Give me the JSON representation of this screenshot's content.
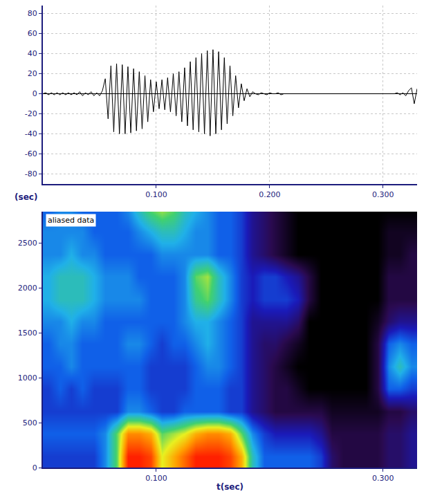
{
  "chart_data": [
    {
      "type": "line",
      "xlabel": "(sec)",
      "x": [
        0,
        0.0025,
        0.005,
        0.0075,
        0.01,
        0.0125,
        0.015,
        0.0175,
        0.02,
        0.0225,
        0.025,
        0.0275,
        0.03,
        0.0325,
        0.035,
        0.0375,
        0.04,
        0.0425,
        0.045,
        0.0475,
        0.05,
        0.0525,
        0.055,
        0.0575,
        0.06,
        0.0625,
        0.065,
        0.0675,
        0.07,
        0.0725,
        0.075,
        0.0775,
        0.08,
        0.0825,
        0.085,
        0.0875,
        0.09,
        0.0925,
        0.095,
        0.0975,
        0.1,
        0.1025,
        0.105,
        0.1075,
        0.11,
        0.1125,
        0.115,
        0.1175,
        0.12,
        0.1225,
        0.125,
        0.1275,
        0.13,
        0.1325,
        0.135,
        0.1375,
        0.14,
        0.1425,
        0.145,
        0.1475,
        0.15,
        0.1525,
        0.155,
        0.1575,
        0.16,
        0.1625,
        0.165,
        0.1675,
        0.17,
        0.1725,
        0.175,
        0.1775,
        0.18,
        0.1825,
        0.185,
        0.1875,
        0.19,
        0.1925,
        0.195,
        0.1975,
        0.2,
        0.2025,
        0.205,
        0.2075,
        0.21,
        0.2125,
        0.215,
        0.2175,
        0.22,
        0.2225,
        0.225,
        0.2275,
        0.23,
        0.2325,
        0.235,
        0.2375,
        0.24,
        0.2425,
        0.245,
        0.2475,
        0.25,
        0.2525,
        0.255,
        0.2575,
        0.26,
        0.2625,
        0.265,
        0.2675,
        0.27,
        0.2725,
        0.275,
        0.2775,
        0.28,
        0.2825,
        0.285,
        0.2875,
        0.29,
        0.2925,
        0.295,
        0.2975,
        0.3,
        0.3025,
        0.305,
        0.3075,
        0.31,
        0.3125,
        0.315,
        0.3175,
        0.32,
        0.3225,
        0.325,
        0.3275,
        0.33
      ],
      "values": [
        0,
        1,
        -1,
        1,
        -1,
        1,
        -1,
        1,
        -1,
        1,
        -1,
        1,
        -1,
        2,
        -2,
        1,
        -1,
        2,
        -2,
        1,
        -2,
        3,
        15,
        -25,
        28,
        -38,
        30,
        -40,
        29,
        -40,
        27,
        -39,
        25,
        -37,
        22,
        -35,
        18,
        -28,
        14,
        -18,
        12,
        -15,
        14,
        -16,
        16,
        -18,
        20,
        -22,
        22,
        -28,
        26,
        -32,
        32,
        -36,
        36,
        -38,
        40,
        -40,
        43,
        -42,
        44,
        -40,
        42,
        -36,
        36,
        -30,
        28,
        -22,
        18,
        -14,
        10,
        -7,
        5,
        -3,
        2,
        0,
        -1,
        1,
        0,
        -1,
        1,
        0,
        0,
        1,
        -1,
        0,
        0,
        0,
        0,
        0,
        0,
        0,
        0,
        0,
        0,
        0,
        0,
        0,
        0,
        0,
        0,
        0,
        0,
        0,
        0,
        0,
        0,
        0,
        0,
        0,
        0,
        0,
        0,
        0,
        0,
        0,
        0,
        0,
        0,
        0,
        0,
        0,
        0,
        0,
        0,
        1,
        -1,
        1,
        -2,
        3,
        6,
        -10,
        5
      ],
      "color": "#000000",
      "xlim": [
        0,
        0.33
      ],
      "xticks": [
        {
          "value": 0.1,
          "label": "0.100"
        },
        {
          "value": 0.2,
          "label": "0.200"
        },
        {
          "value": 0.3,
          "label": "0.300"
        }
      ],
      "ylim": [
        -90,
        88
      ],
      "yticks": [
        -80,
        -60,
        -40,
        -20,
        0,
        20,
        40,
        60,
        80
      ],
      "grid": true
    },
    {
      "type": "heatmap",
      "xlabel": "t(sec)",
      "annotations": [
        "aliased data"
      ],
      "x": [
        0.005,
        0.015,
        0.025,
        0.035,
        0.045,
        0.055,
        0.065,
        0.075,
        0.085,
        0.095,
        0.105,
        0.115,
        0.125,
        0.135,
        0.145,
        0.155,
        0.165,
        0.175,
        0.185,
        0.195,
        0.205,
        0.215,
        0.225,
        0.235,
        0.245,
        0.255,
        0.265,
        0.275,
        0.285,
        0.295,
        0.305,
        0.315,
        0.325
      ],
      "y": [
        125,
        375,
        625,
        875,
        1125,
        1375,
        1625,
        1875,
        2125,
        2375,
        2625,
        2875
      ],
      "z": [
        [
          3,
          3,
          3,
          3,
          3,
          4,
          6,
          10,
          10,
          9.5,
          7,
          8,
          9,
          10,
          10,
          10,
          9.5,
          8,
          5,
          3.5,
          3.5,
          3.5,
          3.5,
          3.5,
          3,
          1.5,
          1,
          1,
          1,
          1,
          1.5,
          1.5,
          2
        ],
        [
          3.5,
          3.5,
          3.5,
          3.5,
          3.5,
          4,
          6,
          8.5,
          8.5,
          8,
          6,
          6.5,
          7,
          8,
          8.5,
          8.5,
          8,
          6,
          4,
          3,
          2.5,
          2.5,
          2.5,
          2.5,
          2,
          1,
          1,
          1,
          1,
          1,
          1.5,
          1.5,
          2
        ],
        [
          3,
          3,
          3,
          3,
          3,
          3,
          3,
          4,
          4,
          3.5,
          3,
          3,
          3.5,
          3.5,
          3.5,
          3.5,
          3,
          3,
          2,
          1.5,
          1,
          1,
          1,
          1,
          1,
          0.5,
          0.5,
          0.5,
          0.5,
          0.5,
          1,
          1,
          1.5
        ],
        [
          3,
          3.5,
          3,
          3.5,
          3,
          3,
          3,
          3.5,
          3.5,
          3,
          3,
          3,
          3,
          3.5,
          3.5,
          3.5,
          3,
          3,
          2,
          1.5,
          1,
          1,
          0.5,
          0,
          0,
          0,
          0,
          0,
          0,
          1,
          3.5,
          3.5,
          3
        ],
        [
          3.5,
          3.5,
          4,
          3.5,
          3.5,
          3.5,
          3.5,
          3.5,
          3.5,
          3,
          3,
          3,
          3,
          3.5,
          4,
          4,
          3.5,
          3,
          2,
          1.5,
          1,
          0.5,
          0,
          0,
          0,
          0,
          0,
          0,
          0,
          1,
          4,
          5,
          4
        ],
        [
          3.5,
          4,
          4,
          3.5,
          3.5,
          3.5,
          3.5,
          4,
          4,
          3.5,
          3,
          3.5,
          3.5,
          4,
          4.5,
          4,
          3.5,
          3,
          2,
          1.5,
          1.5,
          1,
          0.5,
          0,
          0,
          0,
          0,
          0,
          0,
          1,
          3.5,
          4,
          3.5
        ],
        [
          4,
          4,
          4.5,
          4,
          4,
          3.5,
          3.5,
          3.5,
          3.5,
          3.5,
          3.5,
          3.5,
          4,
          4.5,
          4.5,
          4,
          3.5,
          3,
          2,
          2,
          2,
          2,
          1.5,
          0,
          0,
          0,
          0,
          0,
          0,
          0.5,
          1.5,
          2,
          2
        ],
        [
          4.5,
          5,
          5,
          5,
          4.5,
          4,
          4,
          4,
          4,
          3.5,
          3.5,
          3.5,
          4,
          5.5,
          6,
          5,
          4,
          3,
          2.5,
          3,
          3,
          3,
          2.5,
          1,
          0,
          0,
          0,
          0,
          0,
          0,
          1,
          1,
          1
        ],
        [
          4.5,
          5,
          5,
          5,
          4.5,
          4,
          4,
          4,
          3.5,
          3.5,
          3.5,
          3.5,
          4,
          6,
          6.5,
          5,
          4,
          3,
          2.5,
          3,
          3,
          2.5,
          2,
          1,
          0,
          0,
          0,
          0,
          0,
          0,
          1,
          1,
          1
        ],
        [
          4,
          4,
          4.5,
          4,
          4,
          3.5,
          3.5,
          3.5,
          3.5,
          3.5,
          4,
          4,
          4,
          4,
          4,
          3.5,
          3.5,
          3,
          2,
          1.5,
          1,
          0.5,
          0,
          0,
          0,
          0,
          0,
          0,
          0,
          0,
          0.5,
          0.5,
          1
        ],
        [
          4,
          4,
          4,
          4,
          3.5,
          3.5,
          3.5,
          3.5,
          4,
          4.5,
          5,
          5,
          4.5,
          4,
          4,
          3.5,
          3.5,
          3,
          2,
          1.5,
          1,
          0.5,
          0,
          0,
          0,
          0,
          0,
          0,
          0,
          0,
          0.5,
          0.5,
          0.5
        ],
        [
          3.5,
          4,
          4,
          3.5,
          3.5,
          3.5,
          3.5,
          4,
          5,
          6,
          6.5,
          6,
          5,
          4.5,
          4,
          3.5,
          3.5,
          3,
          2,
          1.5,
          1,
          0.5,
          0,
          0,
          0,
          0,
          0,
          0,
          0,
          0,
          0,
          0,
          0
        ]
      ],
      "zlim": [
        0,
        10
      ],
      "xlim": [
        0,
        0.33
      ],
      "xticks": [
        {
          "value": 0.1,
          "label": "0.100"
        },
        {
          "value": 0.3,
          "label": "0.300"
        }
      ],
      "ylim": [
        0,
        2850
      ],
      "yticks": [
        0,
        500,
        1000,
        1500,
        2000,
        2500
      ],
      "grid": false
    }
  ]
}
